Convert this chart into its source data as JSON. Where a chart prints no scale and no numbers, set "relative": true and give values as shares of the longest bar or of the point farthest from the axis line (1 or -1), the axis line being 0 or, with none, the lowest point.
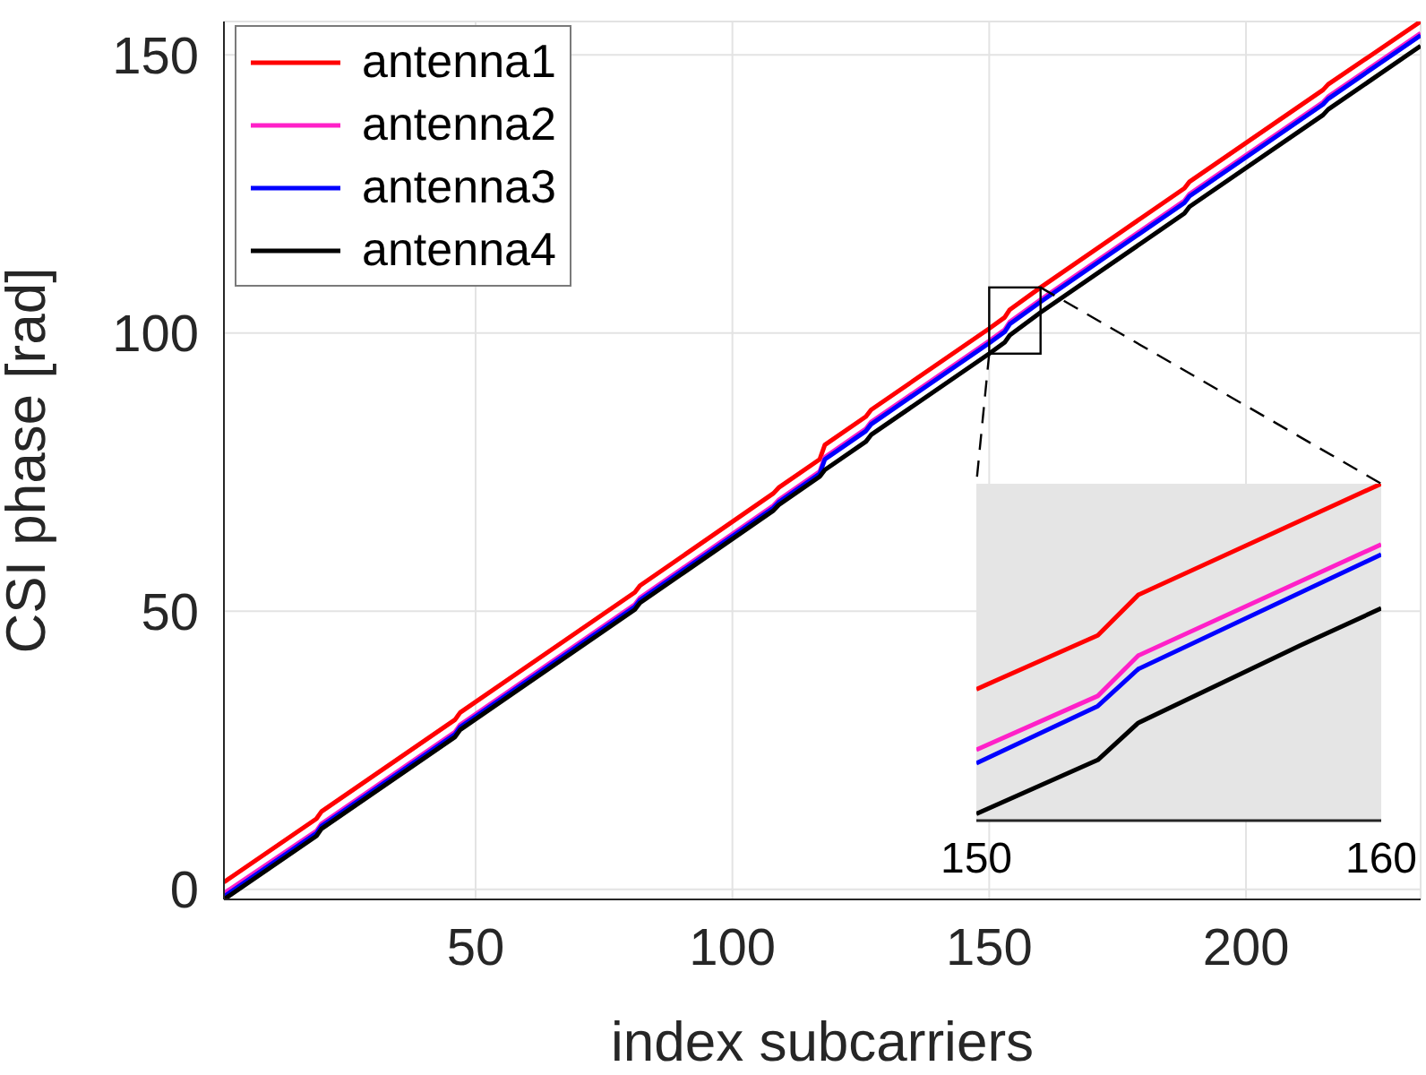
{
  "chart_data": [
    {
      "type": "line",
      "xlabel": "index subcarriers",
      "ylabel": "CSI phase [rad]",
      "x": [
        1,
        19,
        20,
        46,
        47,
        81,
        82,
        108,
        109,
        117,
        118,
        126,
        127,
        150,
        153,
        154,
        160,
        188,
        189,
        215,
        216,
        234
      ],
      "series": [
        {
          "name": "antenna1",
          "color": "#ff0000",
          "values": [
            1.3,
            12.7,
            14.0,
            30.5,
            31.8,
            53.4,
            54.6,
            71.2,
            72.2,
            77.3,
            79.9,
            85.0,
            86.2,
            100.8,
            102.8,
            104.2,
            108.2,
            126.0,
            127.2,
            143.7,
            144.7,
            156.0
          ]
        },
        {
          "name": "antenna2",
          "color": "#ff20c8",
          "values": [
            -0.7,
            10.5,
            11.8,
            28.3,
            29.6,
            51.2,
            52.4,
            69.0,
            70.0,
            75.1,
            77.7,
            82.8,
            84.0,
            98.6,
            100.6,
            102.0,
            106.0,
            123.8,
            125.0,
            141.5,
            142.5,
            153.9
          ]
        },
        {
          "name": "antenna3",
          "color": "#0000ff",
          "values": [
            -1.3,
            10.1,
            11.4,
            27.9,
            29.2,
            50.8,
            52.0,
            68.6,
            69.6,
            74.7,
            77.3,
            82.4,
            83.6,
            98.2,
            100.2,
            101.6,
            105.6,
            123.4,
            124.6,
            141.1,
            142.1,
            153.5
          ]
        },
        {
          "name": "antenna4",
          "color": "#000000",
          "values": [
            -1.8,
            9.6,
            10.9,
            27.4,
            28.7,
            50.3,
            51.5,
            68.1,
            69.1,
            74.2,
            75.4,
            80.5,
            81.7,
            96.3,
            98.3,
            99.6,
            103.7,
            121.5,
            122.7,
            139.2,
            140.2,
            151.6
          ]
        }
      ],
      "xlim": [
        1,
        234
      ],
      "xticks": [
        50,
        100,
        150,
        200
      ],
      "ylim": [
        -1.8,
        156
      ],
      "yticks": [
        0,
        50,
        100,
        150
      ],
      "grid": true,
      "legend": "top left",
      "marker": "none",
      "line_style": "solid"
    },
    {
      "type": "line",
      "series": [
        {
          "color": "#ff0000",
          "x": [
            150,
            153,
            154,
            160
          ],
          "values": [
            0.39,
            0.55,
            0.67,
            1
          ]
        },
        {
          "color": "#ff20c8",
          "x": [
            150,
            153,
            154,
            160
          ],
          "values": [
            0.21,
            0.37,
            0.49,
            0.82
          ]
        },
        {
          "color": "#0000ff",
          "x": [
            150,
            153,
            154,
            160
          ],
          "values": [
            0.17,
            0.34,
            0.45,
            0.79
          ]
        },
        {
          "color": "#000000",
          "x": [
            150,
            153,
            154,
            158,
            160
          ],
          "values": [
            0.02,
            0.18,
            0.29,
            0.52,
            0.63
          ]
        }
      ],
      "relative": true,
      "xlim": [
        150,
        160
      ],
      "xticks": [
        150,
        160
      ],
      "tick_labels": "x",
      "grid": false,
      "legend": false,
      "marker": "none",
      "line_style": "solid"
    }
  ]
}
